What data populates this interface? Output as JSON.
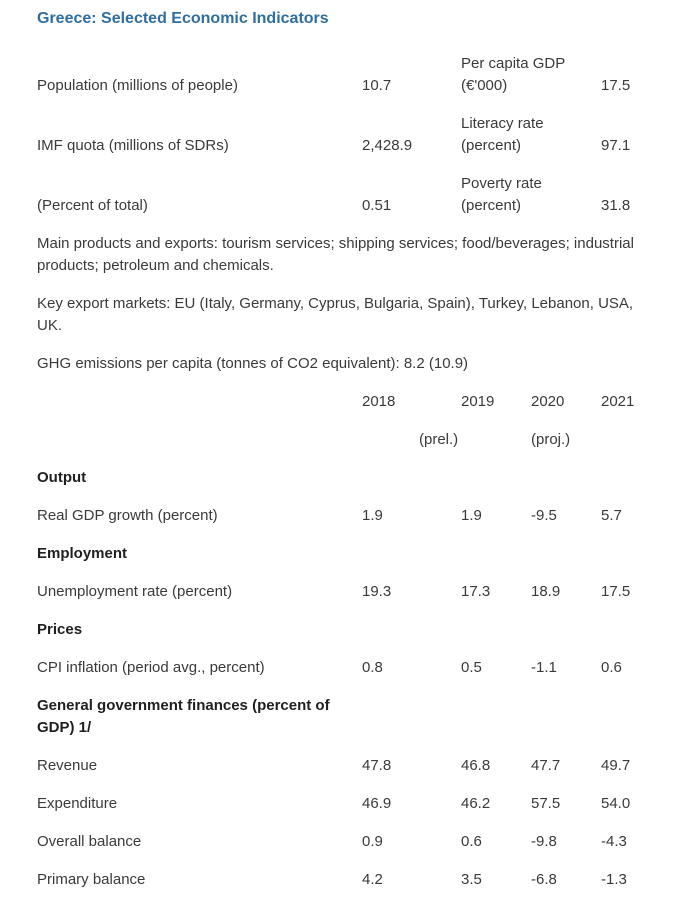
{
  "title": "Greece: Selected Economic Indicators",
  "indicators": {
    "population_label": "Population (millions of people)",
    "population_value": "10.7",
    "gdp_pc_label_1": "Per capita GDP",
    "gdp_pc_label_2": "(€'000)",
    "gdp_pc_value": "17.5",
    "imf_quota_label": "IMF quota (millions of SDRs)",
    "imf_quota_value": "2,428.9",
    "literacy_label_1": "Literacy rate",
    "literacy_label_2": "(percent)",
    "literacy_value": "97.1",
    "pct_total_label": "(Percent of total)",
    "pct_total_value": "0.51",
    "poverty_label_1": "Poverty rate",
    "poverty_label_2": "(percent)",
    "poverty_value": "31.8"
  },
  "notes": {
    "products": "Main products and exports: tourism services; shipping services; food/beverages; industrial products; petroleum and chemicals.",
    "markets": "Key export markets: EU (Italy, Germany, Cyprus, Bulgaria, Spain), Turkey, Lebanon, USA, UK.",
    "ghg": "GHG emissions per capita (tonnes of CO2 equivalent): 8.2 (10.9)"
  },
  "table": {
    "years": [
      "2018",
      "2019",
      "2020",
      "2021"
    ],
    "subheads": {
      "y2019": "(prel.)",
      "y2020": "(proj.)"
    },
    "sections": {
      "output": "Output",
      "employment": "Employment",
      "prices": "Prices",
      "finances": "General government finances (percent of GDP) 1/"
    },
    "rows": [
      {
        "label": "Real GDP growth (percent)",
        "values": [
          "1.9",
          "1.9",
          "-9.5",
          "5.7"
        ]
      },
      {
        "label": "Unemployment rate (percent)",
        "values": [
          "19.3",
          "17.3",
          "18.9",
          "17.5"
        ]
      },
      {
        "label": "CPI inflation (period avg., percent)",
        "values": [
          "0.8",
          "0.5",
          "-1.1",
          "0.6"
        ]
      },
      {
        "label": "Revenue",
        "values": [
          "47.8",
          "46.8",
          "47.7",
          "49.7"
        ]
      },
      {
        "label": "Expenditure",
        "values": [
          "46.9",
          "46.2",
          "57.5",
          "54.0"
        ]
      },
      {
        "label": "Overall balance",
        "values": [
          "0.9",
          "0.6",
          "-9.8",
          "-4.3"
        ]
      },
      {
        "label": "Primary balance",
        "values": [
          "4.2",
          "3.5",
          "-6.8",
          "-1.3"
        ]
      }
    ]
  }
}
